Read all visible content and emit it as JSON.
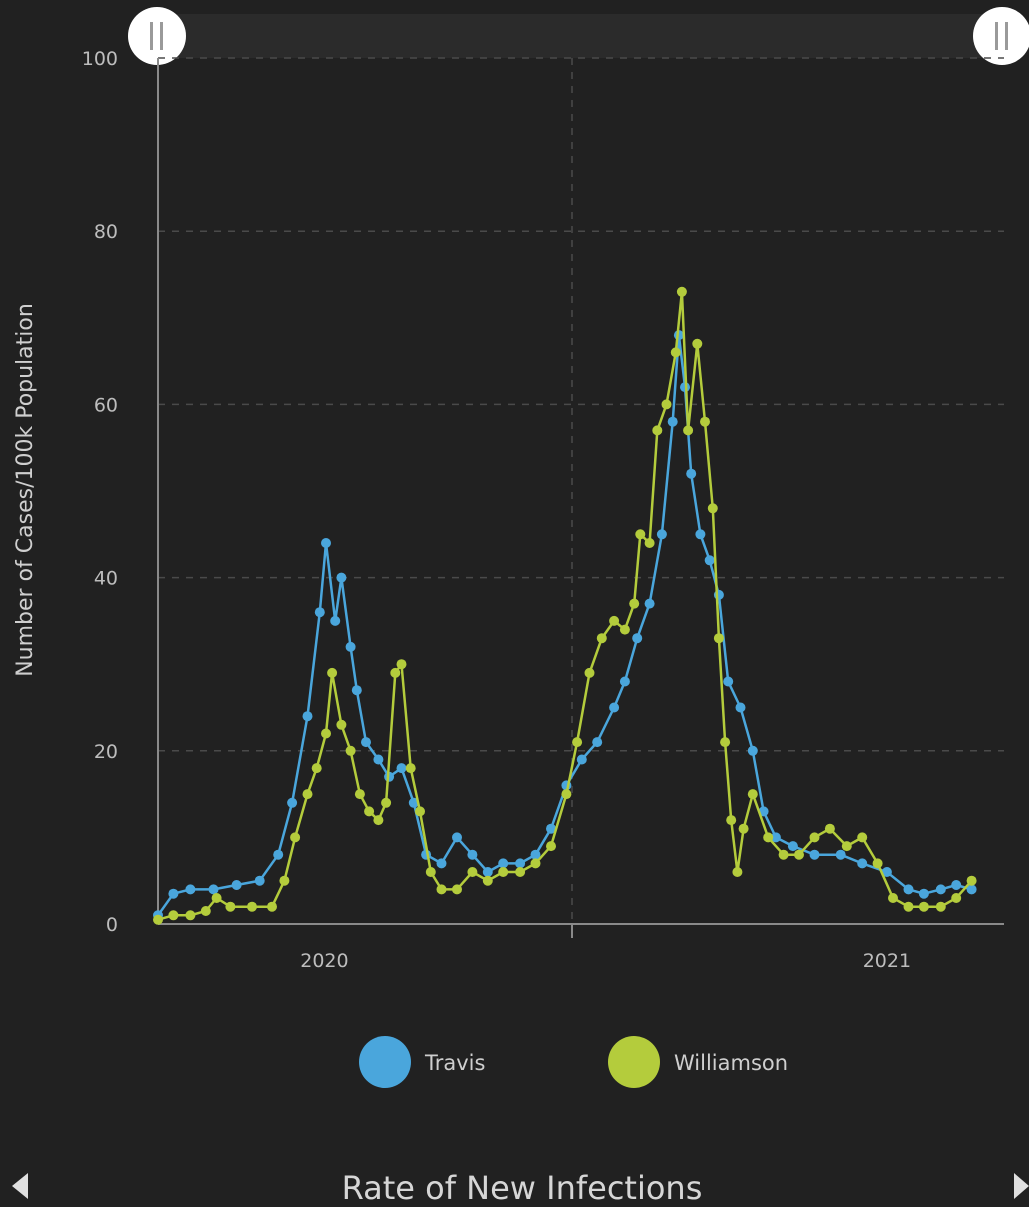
{
  "page": {
    "footer_title": "Rate of New Infections",
    "nav": {
      "prev_icon": "triangle-left-icon",
      "next_icon": "triangle-right-icon"
    },
    "range_selector": {
      "start_handle_icon": "pause-bars-icon",
      "end_handle_icon": "pause-bars-icon"
    }
  },
  "chart_data": {
    "type": "line",
    "title": "",
    "xlabel": "",
    "ylabel": "Number of Cases/100k Population",
    "ylim": [
      0,
      100
    ],
    "y_ticks": [
      0,
      20,
      40,
      60,
      80,
      100
    ],
    "x_ticks": [
      {
        "label": "2020",
        "date": "2020-07-01"
      },
      {
        "label": "2021",
        "date": "2021-07-01"
      }
    ],
    "x_range": [
      "2020-03-15",
      "2021-09-15"
    ],
    "grid": true,
    "legend_position": "bottom",
    "markers": true,
    "series": [
      {
        "name": "Travis",
        "color": "#4aa6dc",
        "points": [
          [
            "2020-03-15",
            1
          ],
          [
            "2020-03-25",
            3.5
          ],
          [
            "2020-04-05",
            4
          ],
          [
            "2020-04-20",
            4
          ],
          [
            "2020-05-05",
            4.5
          ],
          [
            "2020-05-20",
            5
          ],
          [
            "2020-06-01",
            8
          ],
          [
            "2020-06-10",
            14
          ],
          [
            "2020-06-20",
            24
          ],
          [
            "2020-06-28",
            36
          ],
          [
            "2020-07-02",
            44
          ],
          [
            "2020-07-08",
            35
          ],
          [
            "2020-07-12",
            40
          ],
          [
            "2020-07-18",
            32
          ],
          [
            "2020-07-22",
            27
          ],
          [
            "2020-07-28",
            21
          ],
          [
            "2020-08-05",
            19
          ],
          [
            "2020-08-12",
            17
          ],
          [
            "2020-08-20",
            18
          ],
          [
            "2020-08-28",
            14
          ],
          [
            "2020-09-05",
            8
          ],
          [
            "2020-09-15",
            7
          ],
          [
            "2020-09-25",
            10
          ],
          [
            "2020-10-05",
            8
          ],
          [
            "2020-10-15",
            6
          ],
          [
            "2020-10-25",
            7
          ],
          [
            "2020-11-05",
            7
          ],
          [
            "2020-11-15",
            8
          ],
          [
            "2020-11-25",
            11
          ],
          [
            "2020-12-05",
            16
          ],
          [
            "2020-12-15",
            19
          ],
          [
            "2020-12-25",
            21
          ],
          [
            "2021-01-05",
            25
          ],
          [
            "2021-01-12",
            28
          ],
          [
            "2021-01-20",
            33
          ],
          [
            "2021-01-28",
            37
          ],
          [
            "2021-02-05",
            45
          ],
          [
            "2021-02-12",
            58
          ],
          [
            "2021-02-16",
            68
          ],
          [
            "2021-02-20",
            62
          ],
          [
            "2021-02-24",
            52
          ],
          [
            "2021-03-02",
            45
          ],
          [
            "2021-03-08",
            42
          ],
          [
            "2021-03-14",
            38
          ],
          [
            "2021-03-20",
            28
          ],
          [
            "2021-03-28",
            25
          ],
          [
            "2021-04-05",
            20
          ],
          [
            "2021-04-12",
            13
          ],
          [
            "2021-04-20",
            10
          ],
          [
            "2021-05-01",
            9
          ],
          [
            "2021-05-15",
            8
          ],
          [
            "2021-06-01",
            8
          ],
          [
            "2021-06-15",
            7
          ],
          [
            "2021-07-01",
            6
          ],
          [
            "2021-07-15",
            4
          ],
          [
            "2021-07-25",
            3.5
          ],
          [
            "2021-08-05",
            4
          ],
          [
            "2021-08-15",
            4.5
          ],
          [
            "2021-08-25",
            4
          ]
        ]
      },
      {
        "name": "Williamson",
        "color": "#b4cc3c",
        "points": [
          [
            "2020-03-15",
            0.5
          ],
          [
            "2020-03-25",
            1
          ],
          [
            "2020-04-05",
            1
          ],
          [
            "2020-04-15",
            1.5
          ],
          [
            "2020-04-22",
            3
          ],
          [
            "2020-05-01",
            2
          ],
          [
            "2020-05-15",
            2
          ],
          [
            "2020-05-28",
            2
          ],
          [
            "2020-06-05",
            5
          ],
          [
            "2020-06-12",
            10
          ],
          [
            "2020-06-20",
            15
          ],
          [
            "2020-06-26",
            18
          ],
          [
            "2020-07-02",
            22
          ],
          [
            "2020-07-06",
            29
          ],
          [
            "2020-07-12",
            23
          ],
          [
            "2020-07-18",
            20
          ],
          [
            "2020-07-24",
            15
          ],
          [
            "2020-07-30",
            13
          ],
          [
            "2020-08-05",
            12
          ],
          [
            "2020-08-10",
            14
          ],
          [
            "2020-08-16",
            29
          ],
          [
            "2020-08-20",
            30
          ],
          [
            "2020-08-26",
            18
          ],
          [
            "2020-09-01",
            13
          ],
          [
            "2020-09-08",
            6
          ],
          [
            "2020-09-15",
            4
          ],
          [
            "2020-09-25",
            4
          ],
          [
            "2020-10-05",
            6
          ],
          [
            "2020-10-15",
            5
          ],
          [
            "2020-10-25",
            6
          ],
          [
            "2020-11-05",
            6
          ],
          [
            "2020-11-15",
            7
          ],
          [
            "2020-11-25",
            9
          ],
          [
            "2020-12-05",
            15
          ],
          [
            "2020-12-12",
            21
          ],
          [
            "2020-12-20",
            29
          ],
          [
            "2020-12-28",
            33
          ],
          [
            "2021-01-05",
            35
          ],
          [
            "2021-01-12",
            34
          ],
          [
            "2021-01-18",
            37
          ],
          [
            "2021-01-22",
            45
          ],
          [
            "2021-01-28",
            44
          ],
          [
            "2021-02-02",
            57
          ],
          [
            "2021-02-08",
            60
          ],
          [
            "2021-02-14",
            66
          ],
          [
            "2021-02-18",
            73
          ],
          [
            "2021-02-22",
            57
          ],
          [
            "2021-02-28",
            67
          ],
          [
            "2021-03-05",
            58
          ],
          [
            "2021-03-10",
            48
          ],
          [
            "2021-03-14",
            33
          ],
          [
            "2021-03-18",
            21
          ],
          [
            "2021-03-22",
            12
          ],
          [
            "2021-03-26",
            6
          ],
          [
            "2021-03-30",
            11
          ],
          [
            "2021-04-05",
            15
          ],
          [
            "2021-04-15",
            10
          ],
          [
            "2021-04-25",
            8
          ],
          [
            "2021-05-05",
            8
          ],
          [
            "2021-05-15",
            10
          ],
          [
            "2021-05-25",
            11
          ],
          [
            "2021-06-05",
            9
          ],
          [
            "2021-06-15",
            10
          ],
          [
            "2021-06-25",
            7
          ],
          [
            "2021-07-05",
            3
          ],
          [
            "2021-07-15",
            2
          ],
          [
            "2021-07-25",
            2
          ],
          [
            "2021-08-05",
            2
          ],
          [
            "2021-08-15",
            3
          ],
          [
            "2021-08-25",
            5
          ]
        ]
      }
    ]
  }
}
